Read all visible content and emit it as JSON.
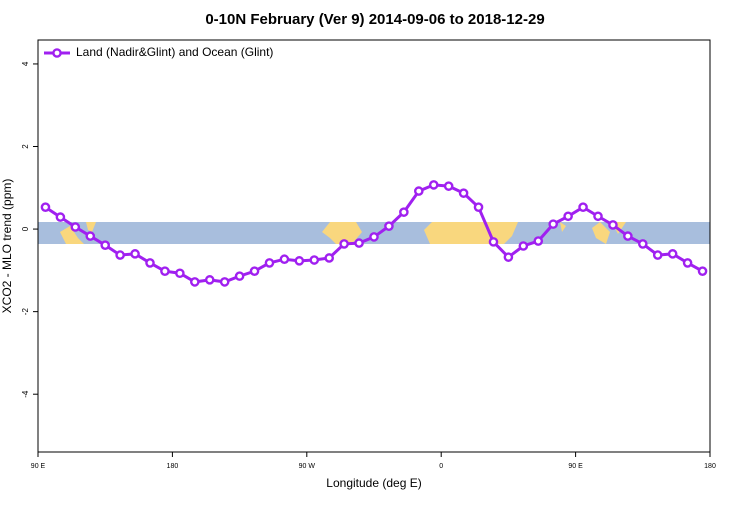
{
  "chart_data": {
    "type": "line",
    "title": "0-10N February (Ver 9)   2014-09-06 to 2018-12-29",
    "x_label": "Longitude (deg E)",
    "y_label": "XCO2 - MLO trend (ppm)",
    "x": [
      95,
      105,
      115,
      125,
      135,
      145,
      155,
      165,
      175,
      185,
      195,
      205,
      215,
      225,
      235,
      245,
      255,
      265,
      275,
      285,
      295,
      305,
      315,
      325,
      335,
      345,
      355,
      365,
      375,
      385,
      395,
      405,
      415,
      425,
      435,
      445,
      455,
      465,
      475,
      485,
      495,
      505,
      515,
      525,
      535
    ],
    "series": [
      {
        "name": "Land (Nadir&Glint) and Ocean (Glint)",
        "color": "#a020f0",
        "values": [
          0.53,
          0.29,
          0.05,
          -0.17,
          -0.39,
          -0.63,
          -0.6,
          -0.82,
          -1.02,
          -1.07,
          -1.28,
          -1.23,
          -1.28,
          -1.14,
          -1.02,
          -0.82,
          -0.73,
          -0.77,
          -0.75,
          -0.7,
          -0.36,
          -0.34,
          -0.19,
          0.07,
          0.41,
          0.92,
          1.07,
          1.04,
          0.87,
          0.53,
          -0.31,
          -0.68,
          -0.41,
          -0.29,
          0.12,
          0.31,
          0.53,
          0.31,
          0.1,
          -0.17,
          -0.36,
          -0.63,
          -0.6,
          -0.82,
          -1.02
        ]
      }
    ],
    "xlim": [
      90,
      540
    ],
    "xticks": [
      {
        "value": 90,
        "label": "90 E"
      },
      {
        "value": 180,
        "label": "180"
      },
      {
        "value": 270,
        "label": "90 W"
      },
      {
        "value": 360,
        "label": "0"
      },
      {
        "value": 450,
        "label": "90 E"
      },
      {
        "value": 540,
        "label": "180"
      }
    ],
    "ylim": [
      -5.4,
      4.58
    ],
    "yticks": [
      -4,
      -2,
      0,
      2,
      4
    ],
    "legend": "top-left"
  }
}
